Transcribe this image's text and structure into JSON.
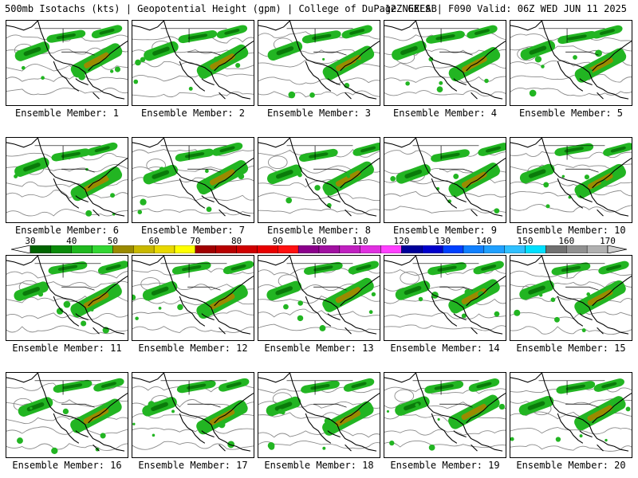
{
  "header": {
    "title_left": "500mb Isotachs (kts) | Geopotential Height (gpm) | College of DuPage NEXLAB",
    "title_right": "12Z GEFS | F090 Valid: 06Z WED JUN 11 2025"
  },
  "panels": [
    {
      "label": "Ensemble Member: 1"
    },
    {
      "label": "Ensemble Member: 2"
    },
    {
      "label": "Ensemble Member: 3"
    },
    {
      "label": "Ensemble Member: 4"
    },
    {
      "label": "Ensemble Member: 5"
    },
    {
      "label": "Ensemble Member: 6"
    },
    {
      "label": "Ensemble Member: 7"
    },
    {
      "label": "Ensemble Member: 8"
    },
    {
      "label": "Ensemble Member: 9"
    },
    {
      "label": "Ensemble Member: 10"
    },
    {
      "label": "Ensemble Member: 11"
    },
    {
      "label": "Ensemble Member: 12"
    },
    {
      "label": "Ensemble Member: 13"
    },
    {
      "label": "Ensemble Member: 14"
    },
    {
      "label": "Ensemble Member: 15"
    },
    {
      "label": "Ensemble Member: 16"
    },
    {
      "label": "Ensemble Member: 17"
    },
    {
      "label": "Ensemble Member: 18"
    },
    {
      "label": "Ensemble Member: 19"
    },
    {
      "label": "Ensemble Member: 20"
    }
  ],
  "colorbar": {
    "labels": [
      "30",
      "40",
      "50",
      "60",
      "70",
      "80",
      "90",
      "100",
      "110",
      "120",
      "130",
      "140",
      "150",
      "160",
      "170"
    ],
    "colors": [
      "#006400",
      "#0a8a0a",
      "#1fb81f",
      "#33d633",
      "#9a8a00",
      "#c9b800",
      "#e8d800",
      "#ffff00",
      "#a00000",
      "#b80000",
      "#d00000",
      "#e80000",
      "#ff1010",
      "#8b008b",
      "#a010a0",
      "#c020c0",
      "#e030e0",
      "#ff40ff",
      "#000099",
      "#0000cc",
      "#0040ff",
      "#1080ff",
      "#20a0ff",
      "#30c0ff",
      "#00e0ff",
      "#707070",
      "#909090",
      "#b0b0b0"
    ]
  }
}
